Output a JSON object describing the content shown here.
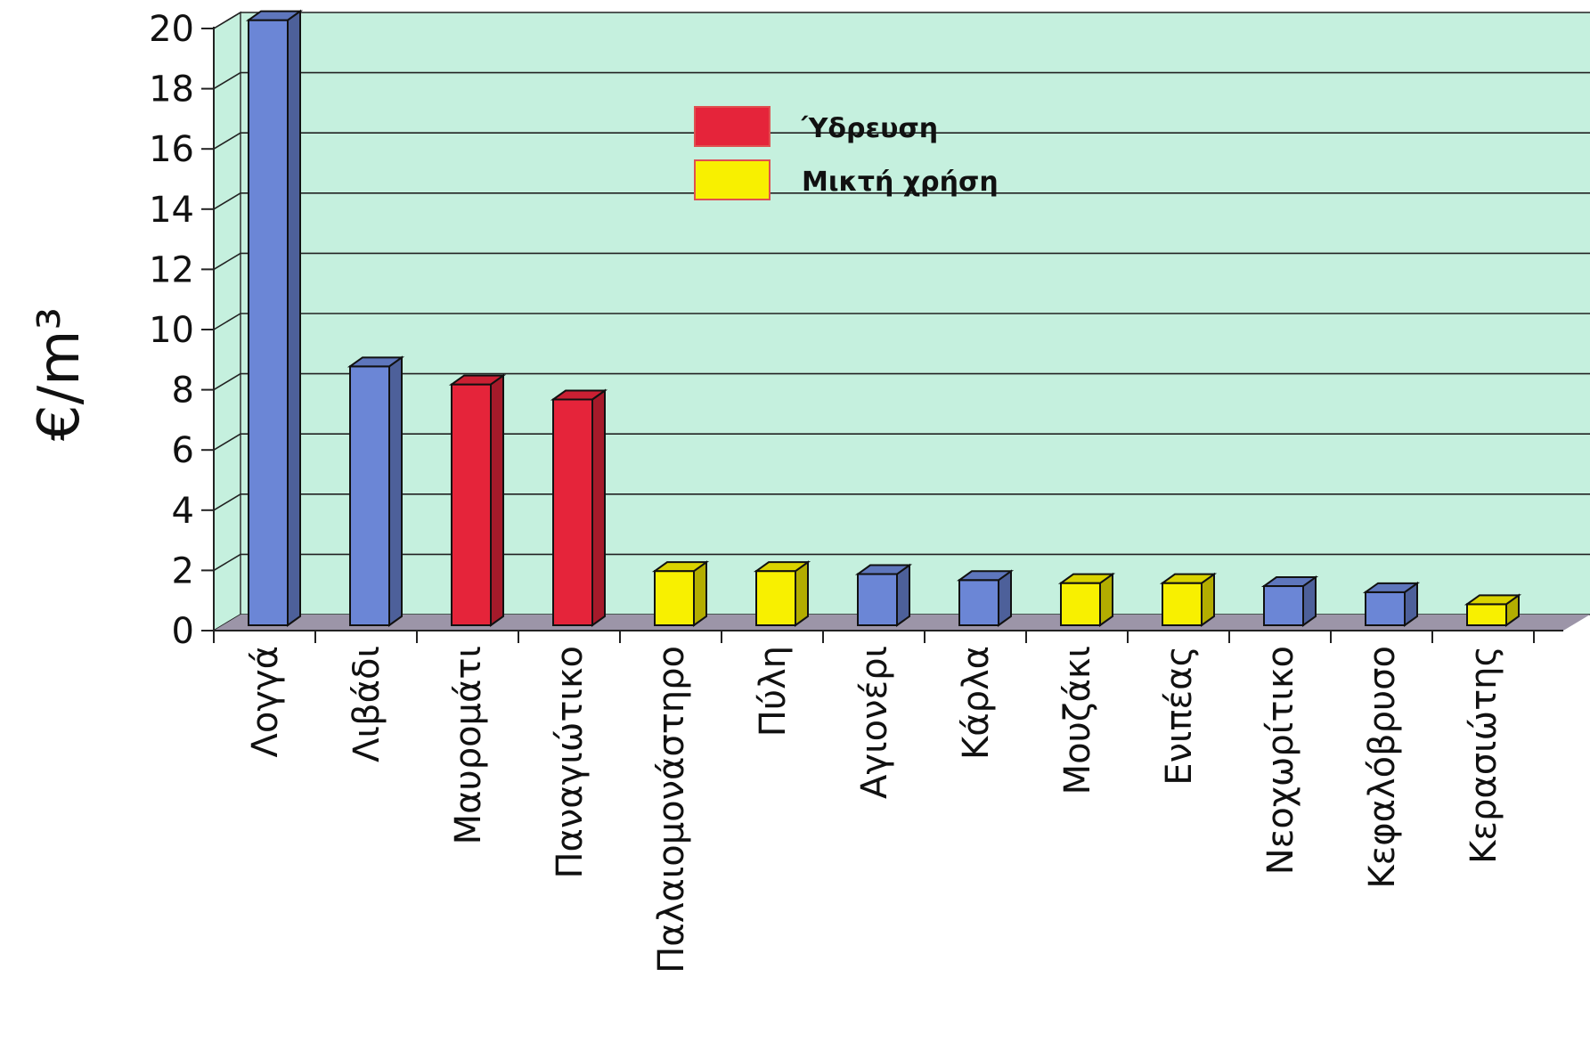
{
  "chart_data": {
    "type": "bar",
    "ylabel": "€/m³",
    "xlabel": "",
    "title": "",
    "ylim": [
      0,
      20
    ],
    "yticks": [
      0,
      2,
      4,
      6,
      8,
      10,
      12,
      14,
      16,
      18,
      20
    ],
    "grid": true,
    "legend_position": "top-center",
    "categories": [
      "Λογγά",
      "Λιβάδι",
      "Μαυρομάτι",
      "Παναγιώτικο",
      "Παλαιομονάστηρο",
      "Πύλη",
      "Αγιονέρι",
      "Κάρλα",
      "Μουζάκι",
      "Ενιπέας",
      "Νεοχωρίτικο",
      "Κεφαλόβρυσο",
      "Κερασιώτης"
    ],
    "values": [
      20.1,
      8.6,
      8.0,
      7.5,
      1.8,
      1.8,
      1.7,
      1.5,
      1.4,
      1.4,
      1.3,
      1.1,
      0.7
    ],
    "bar_types": [
      "other",
      "other",
      "water_supply",
      "water_supply",
      "mixed_use",
      "mixed_use",
      "other",
      "other",
      "mixed_use",
      "mixed_use",
      "other",
      "other",
      "mixed_use"
    ],
    "legend": [
      {
        "key": "water_supply",
        "label": "Ύδρευση",
        "color": "#e5243a"
      },
      {
        "key": "mixed_use",
        "label": "Μικτή χρήση",
        "color": "#f8f000"
      }
    ],
    "colors": {
      "other": "#6b86d6",
      "water_supply": "#e5243a",
      "mixed_use": "#f8f000",
      "plot_background": "#c5f0de",
      "floor": "#9c95a8"
    }
  }
}
